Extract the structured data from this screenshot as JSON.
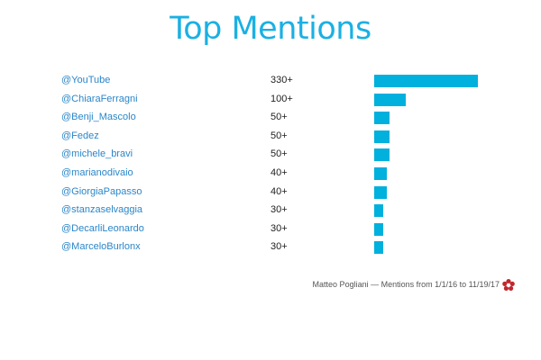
{
  "title": "Top Mentions",
  "footer": "Matteo Pogliani — Mentions from 1/1/16 to 11/19/17",
  "accent_color": "#00b0dd",
  "logo_icon": "flower-logo-icon",
  "chart_data": {
    "type": "bar",
    "orientation": "horizontal",
    "title": "Top Mentions",
    "categories": [
      "@YouTube",
      "@ChiaraFerragni",
      "@Benji_Mascolo",
      "@Fedez",
      "@michele_bravi",
      "@marianodivaio",
      "@GiorgiaPapasso",
      "@stanzaselvaggia",
      "@DecarliLeonardo",
      "@MarceloBurlonx"
    ],
    "labels": [
      "330+",
      "100+",
      "50+",
      "50+",
      "50+",
      "40+",
      "40+",
      "30+",
      "30+",
      "30+"
    ],
    "values": [
      330,
      100,
      50,
      50,
      50,
      40,
      40,
      30,
      30,
      30
    ],
    "xlim": [
      0,
      330
    ],
    "grid": false,
    "legend": "none"
  }
}
